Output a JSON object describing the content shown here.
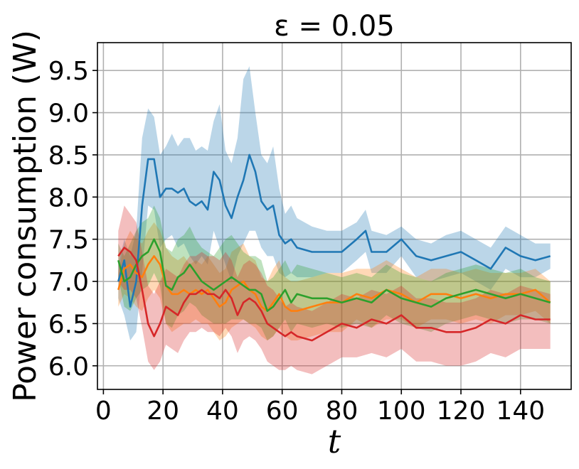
{
  "chart_data": {
    "type": "line",
    "title": "ε = 0.05",
    "xlabel": "t",
    "ylabel": "Power consumption (W)",
    "xlim": [
      -2,
      157
    ],
    "ylim": [
      5.72,
      9.83
    ],
    "xticks": [
      0,
      20,
      40,
      60,
      80,
      100,
      120,
      140
    ],
    "yticks": [
      6.0,
      6.5,
      7.0,
      7.5,
      8.0,
      8.5,
      9.0,
      9.5
    ],
    "xtick_labels": [
      "0",
      "20",
      "40",
      "60",
      "80",
      "100",
      "120",
      "140"
    ],
    "ytick_labels": [
      "6.0",
      "6.5",
      "7.0",
      "7.5",
      "8.0",
      "8.5",
      "9.0",
      "9.5"
    ],
    "grid": true,
    "legend": "none",
    "series": [
      {
        "color": "#1f77b4",
        "x": [
          5,
          7,
          9,
          11,
          13,
          15,
          17,
          19,
          21,
          23,
          25,
          27,
          29,
          31,
          33,
          35,
          37,
          39,
          41,
          43,
          45,
          47,
          49,
          51,
          53,
          55,
          57,
          59,
          61,
          63,
          65,
          70,
          75,
          80,
          85,
          88,
          90,
          95,
          100,
          105,
          110,
          115,
          120,
          125,
          130,
          135,
          140,
          145,
          150
        ],
        "values": [
          7.0,
          7.25,
          6.7,
          7.0,
          7.9,
          8.45,
          8.45,
          8.0,
          8.1,
          8.1,
          8.05,
          8.1,
          7.95,
          7.9,
          7.95,
          7.85,
          8.3,
          8.2,
          7.9,
          7.75,
          8.0,
          8.2,
          8.5,
          8.3,
          7.95,
          7.85,
          7.9,
          7.55,
          7.45,
          7.5,
          7.4,
          7.35,
          7.35,
          7.35,
          7.5,
          7.6,
          7.35,
          7.35,
          7.5,
          7.3,
          7.25,
          7.3,
          7.35,
          7.25,
          7.15,
          7.4,
          7.3,
          7.25,
          7.3
        ],
        "upper": [
          7.2,
          7.5,
          7.3,
          7.6,
          8.7,
          9.05,
          8.95,
          8.5,
          8.6,
          8.75,
          8.6,
          8.7,
          8.7,
          8.55,
          8.6,
          8.55,
          8.9,
          9.1,
          8.55,
          8.4,
          8.7,
          9.4,
          9.55,
          9.0,
          8.5,
          8.4,
          8.6,
          8.1,
          7.8,
          7.9,
          7.75,
          7.65,
          7.6,
          7.6,
          7.7,
          7.85,
          7.6,
          7.55,
          7.65,
          7.5,
          7.45,
          7.55,
          7.6,
          7.5,
          7.4,
          7.65,
          7.55,
          7.45,
          7.45
        ],
        "lower": [
          6.8,
          6.6,
          6.3,
          6.4,
          7.1,
          7.9,
          7.85,
          7.4,
          7.5,
          7.55,
          7.4,
          7.45,
          7.3,
          7.2,
          7.3,
          7.2,
          7.6,
          7.4,
          7.2,
          7.0,
          7.3,
          7.45,
          7.6,
          7.6,
          7.4,
          7.3,
          7.3,
          7.1,
          7.05,
          7.1,
          7.05,
          7.05,
          7.1,
          7.1,
          7.25,
          7.35,
          7.1,
          7.1,
          7.3,
          7.05,
          7.0,
          7.05,
          7.1,
          7.0,
          6.9,
          7.15,
          7.05,
          7.05,
          7.15
        ]
      },
      {
        "color": "#ff7f0e",
        "x": [
          5,
          7,
          9,
          11,
          13,
          15,
          17,
          19,
          21,
          23,
          25,
          27,
          29,
          31,
          33,
          35,
          37,
          39,
          41,
          43,
          45,
          47,
          49,
          51,
          53,
          55,
          57,
          59,
          61,
          63,
          65,
          70,
          75,
          80,
          85,
          90,
          95,
          100,
          105,
          110,
          115,
          120,
          125,
          130,
          135,
          140,
          145,
          150
        ],
        "values": [
          6.9,
          7.15,
          7.2,
          7.1,
          7.05,
          7.2,
          7.3,
          7.2,
          6.95,
          6.85,
          6.85,
          6.9,
          6.85,
          6.9,
          6.85,
          6.9,
          6.8,
          6.7,
          6.75,
          6.9,
          6.95,
          7.0,
          6.9,
          6.85,
          6.7,
          6.65,
          6.75,
          6.85,
          6.7,
          6.65,
          6.65,
          6.7,
          6.75,
          6.75,
          6.85,
          6.8,
          6.9,
          6.85,
          6.75,
          6.85,
          6.85,
          6.8,
          6.85,
          6.8,
          6.85,
          6.85,
          6.9,
          6.75
        ],
        "upper": [
          7.1,
          7.45,
          7.6,
          7.5,
          7.45,
          7.6,
          7.7,
          7.6,
          7.4,
          7.3,
          7.25,
          7.3,
          7.2,
          7.25,
          7.2,
          7.3,
          7.2,
          7.1,
          7.15,
          7.35,
          7.4,
          7.45,
          7.3,
          7.25,
          7.05,
          7.0,
          7.15,
          7.25,
          7.05,
          7.0,
          7.0,
          7.05,
          7.1,
          7.1,
          7.15,
          7.15,
          7.25,
          7.15,
          7.05,
          7.15,
          7.15,
          7.1,
          7.15,
          7.1,
          7.1,
          7.1,
          7.15,
          7.0
        ],
        "lower": [
          6.7,
          6.85,
          6.8,
          6.7,
          6.65,
          6.8,
          6.9,
          6.8,
          6.5,
          6.4,
          6.45,
          6.5,
          6.5,
          6.55,
          6.5,
          6.5,
          6.4,
          6.3,
          6.35,
          6.45,
          6.5,
          6.55,
          6.5,
          6.45,
          6.35,
          6.3,
          6.35,
          6.45,
          6.35,
          6.3,
          6.3,
          6.35,
          6.4,
          6.4,
          6.55,
          6.45,
          6.55,
          6.55,
          6.45,
          6.55,
          6.55,
          6.5,
          6.55,
          6.5,
          6.6,
          6.6,
          6.65,
          6.5
        ]
      },
      {
        "color": "#2ca02c",
        "x": [
          5,
          7,
          9,
          11,
          13,
          15,
          17,
          19,
          21,
          23,
          25,
          27,
          29,
          31,
          33,
          35,
          37,
          39,
          41,
          43,
          45,
          47,
          49,
          51,
          53,
          55,
          57,
          59,
          61,
          63,
          65,
          70,
          75,
          80,
          85,
          90,
          95,
          100,
          105,
          110,
          115,
          120,
          125,
          130,
          135,
          140,
          145,
          150
        ],
        "values": [
          7.25,
          7.0,
          7.05,
          7.2,
          7.3,
          7.35,
          7.5,
          7.35,
          6.95,
          6.9,
          7.05,
          7.1,
          7.2,
          7.1,
          7.0,
          6.95,
          6.9,
          6.95,
          7.0,
          7.05,
          7.0,
          6.95,
          6.9,
          6.9,
          6.85,
          6.65,
          6.7,
          6.8,
          6.9,
          6.75,
          6.85,
          6.8,
          6.8,
          6.75,
          6.8,
          6.75,
          6.9,
          6.8,
          6.75,
          6.7,
          6.8,
          6.85,
          6.9,
          6.85,
          6.8,
          6.85,
          6.8,
          6.75
        ],
        "upper": [
          7.45,
          7.3,
          7.45,
          7.6,
          7.7,
          7.75,
          7.9,
          7.75,
          7.4,
          7.35,
          7.5,
          7.55,
          7.65,
          7.5,
          7.4,
          7.35,
          7.3,
          7.4,
          7.5,
          7.55,
          7.45,
          7.35,
          7.3,
          7.3,
          7.25,
          7.0,
          7.05,
          7.15,
          7.25,
          7.1,
          7.2,
          7.15,
          7.1,
          7.05,
          7.1,
          7.05,
          7.2,
          7.1,
          7.05,
          7.0,
          7.1,
          7.15,
          7.2,
          7.15,
          7.1,
          7.15,
          7.05,
          7.0
        ],
        "lower": [
          7.05,
          6.7,
          6.65,
          6.8,
          6.9,
          6.95,
          7.1,
          6.95,
          6.5,
          6.45,
          6.6,
          6.65,
          6.75,
          6.7,
          6.6,
          6.55,
          6.5,
          6.5,
          6.5,
          6.55,
          6.55,
          6.55,
          6.5,
          6.5,
          6.45,
          6.3,
          6.35,
          6.45,
          6.55,
          6.4,
          6.5,
          6.45,
          6.5,
          6.45,
          6.5,
          6.45,
          6.6,
          6.5,
          6.45,
          6.4,
          6.5,
          6.55,
          6.6,
          6.55,
          6.5,
          6.55,
          6.55,
          6.5
        ]
      },
      {
        "color": "#d62728",
        "x": [
          5,
          7,
          9,
          11,
          13,
          15,
          17,
          19,
          21,
          23,
          25,
          27,
          29,
          31,
          33,
          35,
          37,
          39,
          41,
          43,
          45,
          47,
          49,
          51,
          53,
          55,
          57,
          59,
          61,
          63,
          65,
          70,
          75,
          80,
          85,
          90,
          95,
          100,
          105,
          110,
          115,
          120,
          125,
          130,
          135,
          140,
          145,
          150
        ],
        "values": [
          7.3,
          7.4,
          7.35,
          7.25,
          6.9,
          6.5,
          6.35,
          6.5,
          6.7,
          6.65,
          6.6,
          6.75,
          6.85,
          6.85,
          6.9,
          6.85,
          6.85,
          6.8,
          6.9,
          6.8,
          6.6,
          6.75,
          6.8,
          6.75,
          6.65,
          6.5,
          6.45,
          6.4,
          6.35,
          6.4,
          6.35,
          6.3,
          6.4,
          6.5,
          6.45,
          6.55,
          6.5,
          6.6,
          6.45,
          6.45,
          6.4,
          6.4,
          6.45,
          6.55,
          6.5,
          6.6,
          6.55,
          6.55
        ],
        "upper": [
          7.6,
          7.9,
          7.8,
          7.7,
          7.35,
          6.95,
          6.85,
          7.0,
          7.15,
          7.1,
          7.05,
          7.2,
          7.3,
          7.3,
          7.35,
          7.3,
          7.3,
          7.25,
          7.35,
          7.25,
          7.05,
          7.2,
          7.25,
          7.2,
          7.1,
          6.95,
          6.9,
          6.8,
          6.7,
          6.75,
          6.7,
          6.65,
          6.75,
          6.85,
          6.8,
          6.9,
          6.85,
          6.95,
          6.8,
          6.8,
          6.75,
          6.75,
          6.8,
          6.9,
          6.85,
          6.95,
          6.9,
          6.85
        ],
        "lower": [
          7.0,
          6.9,
          6.9,
          6.8,
          6.45,
          6.05,
          5.95,
          6.05,
          6.25,
          6.2,
          6.15,
          6.3,
          6.4,
          6.4,
          6.45,
          6.4,
          6.4,
          6.35,
          6.45,
          6.35,
          6.15,
          6.3,
          6.35,
          6.3,
          6.2,
          6.05,
          6.0,
          5.95,
          5.95,
          6.0,
          5.95,
          5.9,
          6.0,
          6.1,
          6.1,
          6.15,
          6.1,
          6.2,
          6.05,
          6.05,
          6.0,
          6.0,
          6.05,
          6.15,
          6.1,
          6.2,
          6.2,
          6.2
        ]
      }
    ]
  }
}
